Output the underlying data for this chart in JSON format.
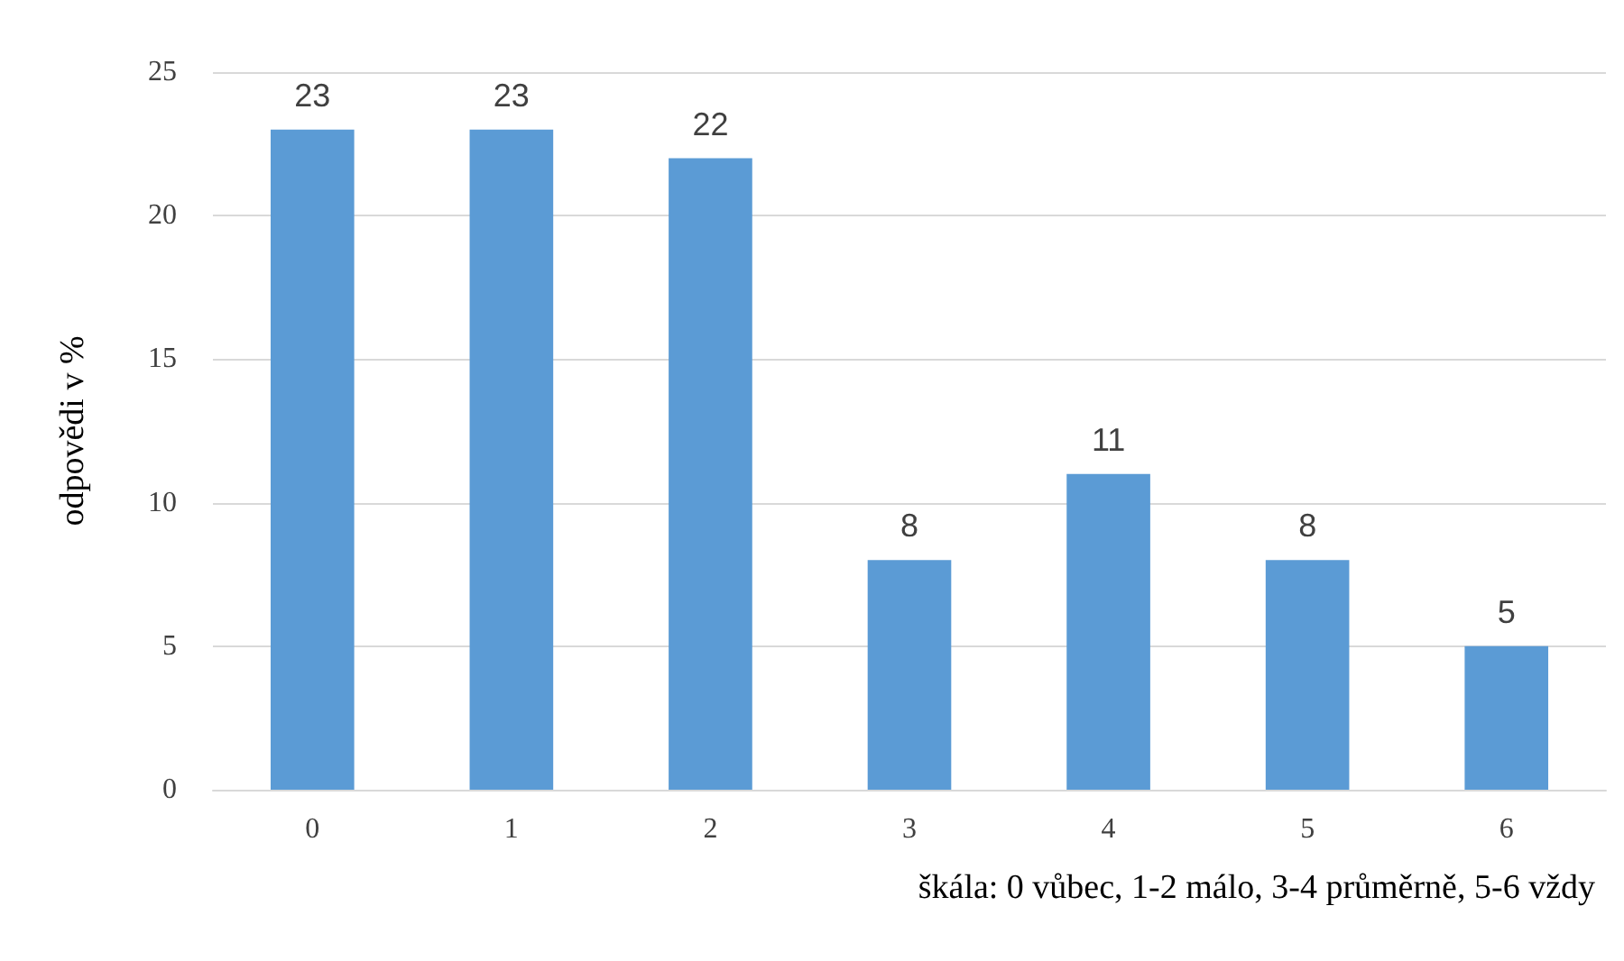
{
  "chart_data": {
    "type": "bar",
    "ylabel": "odpovědi v %",
    "xlabel": "škála: 0 vůbec, 1-2 málo, 3-4 průměrně, 5-6 vždy",
    "categories": [
      "0",
      "1",
      "2",
      "3",
      "4",
      "5",
      "6"
    ],
    "values": [
      23,
      23,
      22,
      8,
      11,
      8,
      5
    ],
    "color": "#5b9bd5",
    "ylim": [
      0,
      25
    ],
    "yticks": [
      0,
      5,
      10,
      15,
      20,
      25
    ],
    "grid": "y",
    "data_labels": true
  }
}
